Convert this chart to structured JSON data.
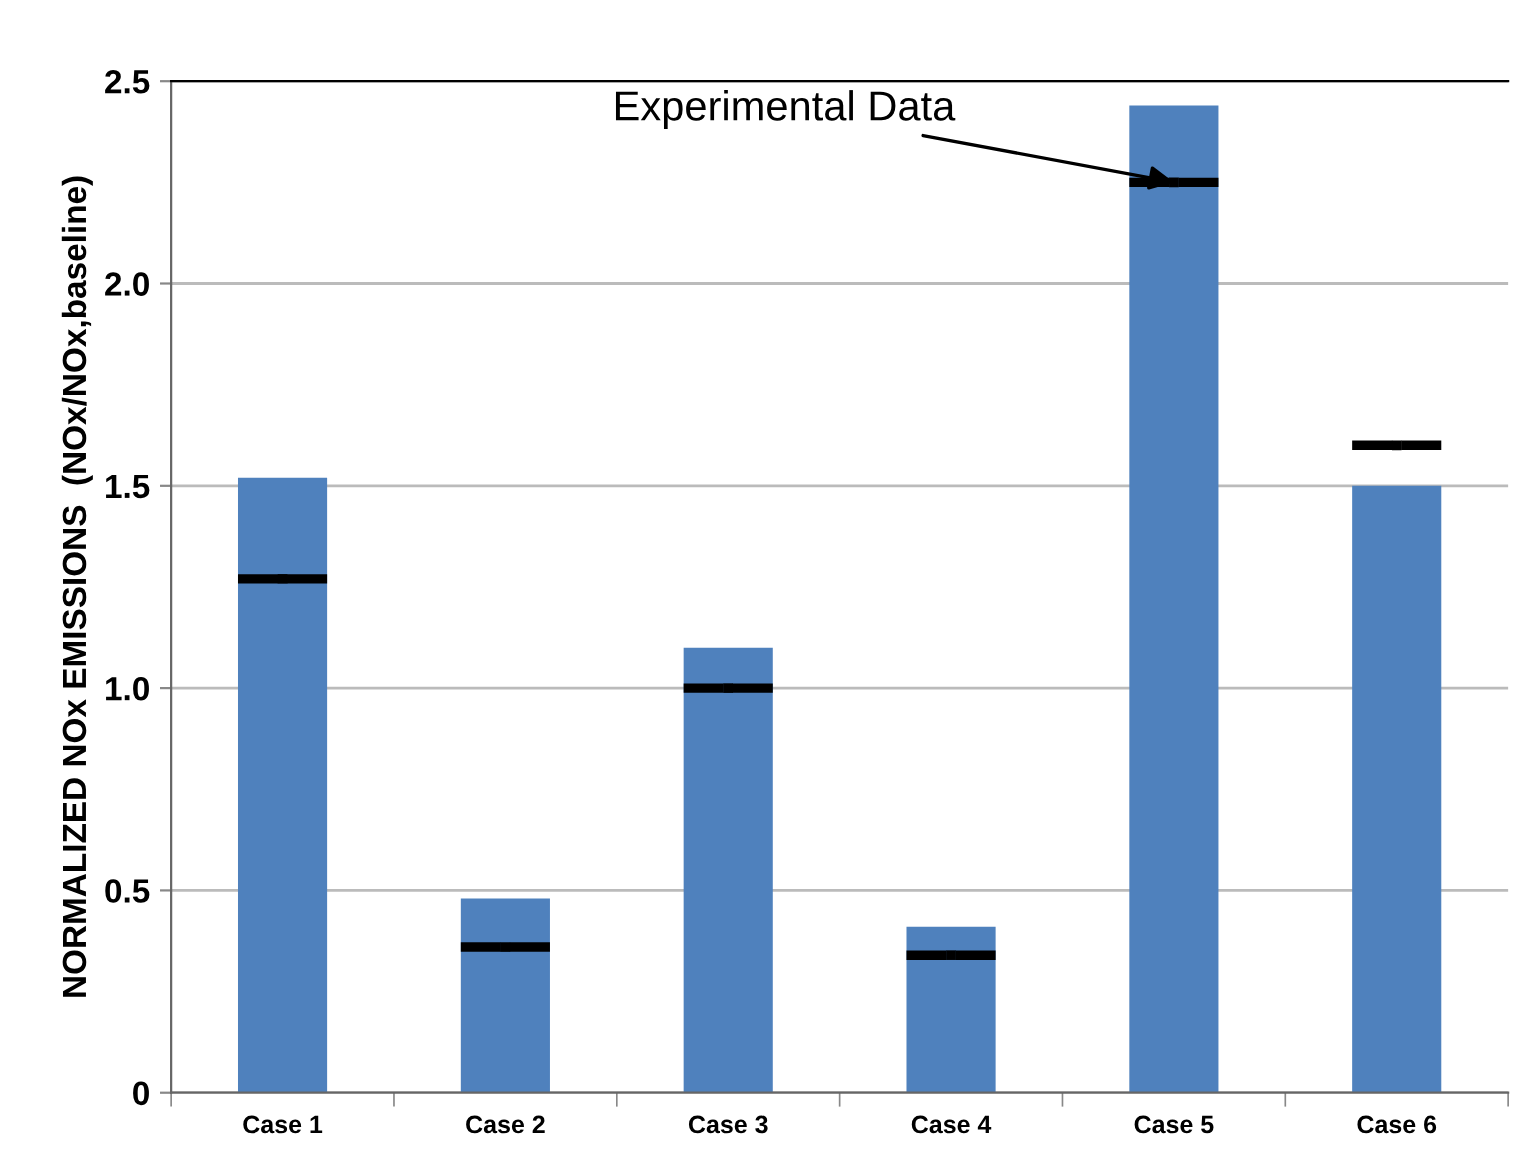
{
  "chart_data": {
    "type": "bar",
    "ylabel": "NORMALIZED NOx EMISSIONS  (NOx/NOx,baseline)",
    "categories": [
      "Case 1",
      "Case 2",
      "Case 3",
      "Case 4",
      "Case 5",
      "Case 6"
    ],
    "series": [
      {
        "color": "#4f81bd",
        "values": [
          1.52,
          0.48,
          1.1,
          0.41,
          2.44,
          1.5
        ]
      },
      {
        "type": "scatter",
        "color": "#000000",
        "x": [
          "Case 1",
          "Case 2",
          "Case 3",
          "Case 4",
          "Case 5",
          "Case 6"
        ],
        "values": [
          1.27,
          0.36,
          1.0,
          0.34,
          2.25,
          1.6
        ]
      }
    ],
    "annotations": [
      {
        "text": "Experimental Data",
        "x": "Case 5",
        "y": 2.25
      }
    ],
    "ylim": [
      0,
      2.5
    ],
    "yticks": [
      0,
      0.5,
      {
        "value": 1.0,
        "label": "1.0"
      },
      1.5,
      {
        "value": 2.0,
        "label": "2.0"
      },
      2.5
    ],
    "grid": "y"
  }
}
